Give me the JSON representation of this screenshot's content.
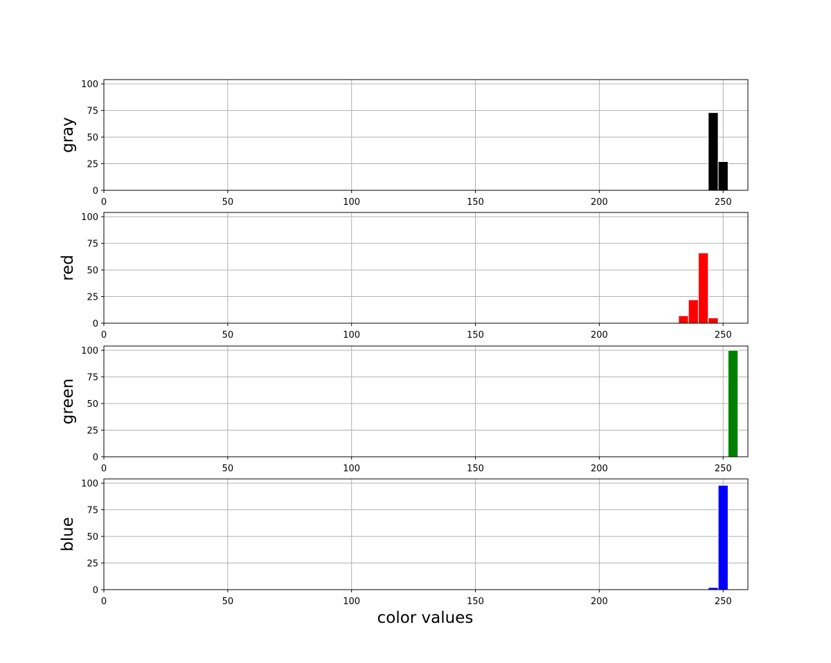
{
  "chart_data": {
    "type": "bar",
    "xlabel": "color values",
    "xlim": [
      0,
      260
    ],
    "xticks": [
      0,
      50,
      100,
      150,
      200,
      250
    ],
    "ylim": [
      0,
      104
    ],
    "yticks": [
      0,
      25,
      50,
      75,
      100
    ],
    "grid": true,
    "bin_width": 4,
    "panels": [
      {
        "ylabel": "gray",
        "color": "#000000",
        "bins": [
          {
            "x": 244,
            "value": 73
          },
          {
            "x": 248,
            "value": 27
          }
        ]
      },
      {
        "ylabel": "red",
        "color": "#ff0000",
        "bins": [
          {
            "x": 232,
            "value": 7
          },
          {
            "x": 236,
            "value": 22
          },
          {
            "x": 240,
            "value": 66
          },
          {
            "x": 244,
            "value": 5
          }
        ]
      },
      {
        "ylabel": "green",
        "color": "#008000",
        "bins": [
          {
            "x": 252,
            "value": 100
          }
        ]
      },
      {
        "ylabel": "blue",
        "color": "#0000ff",
        "bins": [
          {
            "x": 244,
            "value": 2
          },
          {
            "x": 248,
            "value": 98
          }
        ]
      }
    ]
  }
}
